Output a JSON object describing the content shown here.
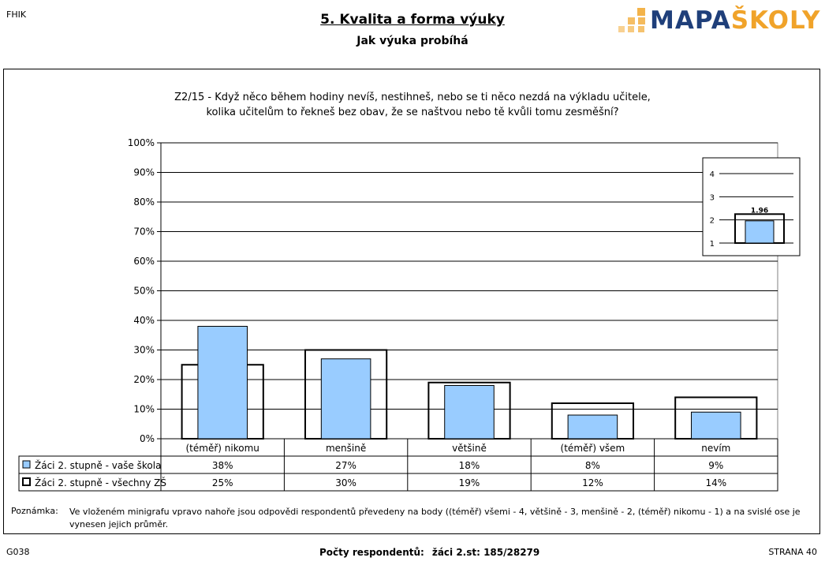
{
  "header": {
    "code": "FHIK",
    "title": "5. Kvalita a forma výuky",
    "subtitle": "Jak výuka probíhá",
    "logo": {
      "part1": "MAPA",
      "part2": "ŠKOLY",
      "color1": "#1f3f7a",
      "color2": "#f0a32a"
    }
  },
  "question": {
    "line1": "Z2/15 - Když něco během hodiny nevíš, nestihneš, nebo se ti něco nezdá na výkladu učitele,",
    "line2": "kolika učitelům to řekneš bez obav, že se naštvou nebo tě kvůli tomu zesměšní?"
  },
  "chart_data": [
    {
      "type": "bar",
      "categories": [
        "(téměř) nikomu",
        "menšině",
        "většině",
        "(téměř) všem",
        "nevím"
      ],
      "y_tick_labels": [
        "0%",
        "10%",
        "20%",
        "30%",
        "40%",
        "50%",
        "60%",
        "70%",
        "80%",
        "90%",
        "100%"
      ],
      "ylim": [
        0,
        100
      ],
      "grid": true,
      "series": [
        {
          "name": "Žáci 2. stupně - vaše škola",
          "values": [
            38,
            27,
            18,
            8,
            9
          ],
          "labels": [
            "38%",
            "27%",
            "18%",
            "8%",
            "9%"
          ],
          "color": "#99ccff",
          "style": "filled"
        },
        {
          "name": "Žáci 2. stupně - všechny ZŠ",
          "values": [
            25,
            30,
            19,
            12,
            14
          ],
          "labels": [
            "25%",
            "30%",
            "19%",
            "12%",
            "14%"
          ],
          "color": "#ffffff",
          "style": "outline"
        }
      ],
      "legend": "table-below"
    },
    {
      "type": "bar",
      "categories": [
        ""
      ],
      "y_tick_labels": [
        "1",
        "2",
        "3",
        "4"
      ],
      "ylim": [
        1,
        4
      ],
      "series": [
        {
          "name": "Žáci 2. stupně - vaše škola",
          "values": [
            1.96
          ],
          "color": "#99ccff"
        },
        {
          "name": "Žáci 2. stupně - všechny ZŠ",
          "values": [
            2.25
          ],
          "color": "#ffffff"
        }
      ],
      "data_label": "1.96",
      "placement": "top-right"
    }
  ],
  "note": {
    "label": "Poznámka:",
    "text": "Ve vloženém minigrafu vpravo nahoře jsou odpovědi respondentů převedeny na body ((téměř) všemi - 4, většině - 3, menšině - 2, (téměř) nikomu - 1) a na svislé ose je vynesen jejich průměr."
  },
  "footer": {
    "left": "G038",
    "respondents_label": "Počty respondentů:",
    "respondents_value": "žáci 2.st: 185/28279",
    "page": "STRANA 40"
  }
}
